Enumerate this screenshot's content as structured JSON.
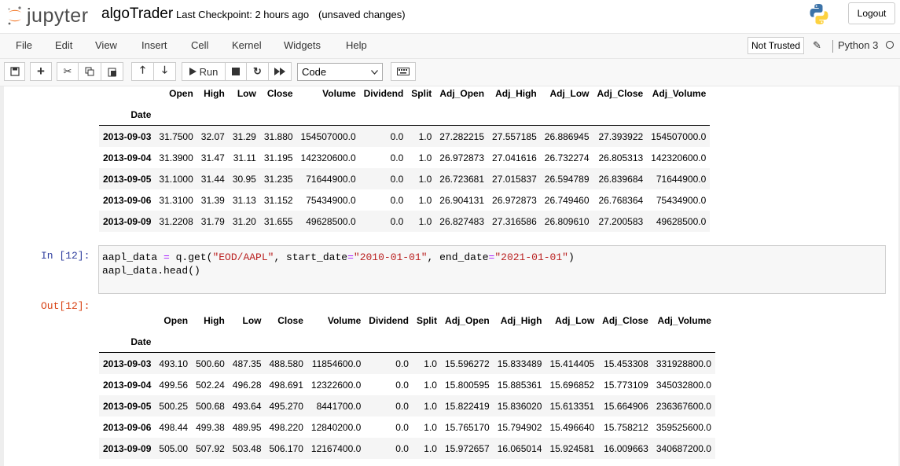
{
  "header": {
    "logo_text": "jupyter",
    "notebook_name": "algoTrader",
    "checkpoint": "Last Checkpoint: 2 hours ago",
    "autosave": "(unsaved changes)",
    "logout_label": "Logout"
  },
  "menu": {
    "items": [
      "File",
      "Edit",
      "View",
      "Insert",
      "Cell",
      "Kernel",
      "Widgets",
      "Help"
    ],
    "trust_label": "Not Trusted",
    "kernel_name": "Python 3"
  },
  "toolbar": {
    "run_label": "Run",
    "cell_type": "Code"
  },
  "table1": {
    "columns": [
      "Open",
      "High",
      "Low",
      "Close",
      "Volume",
      "Dividend",
      "Split",
      "Adj_Open",
      "Adj_High",
      "Adj_Low",
      "Adj_Close",
      "Adj_Volume"
    ],
    "index_name": "Date",
    "rows": [
      [
        "2013-09-03",
        "31.7500",
        "32.07",
        "31.29",
        "31.880",
        "154507000.0",
        "0.0",
        "1.0",
        "27.282215",
        "27.557185",
        "26.886945",
        "27.393922",
        "154507000.0"
      ],
      [
        "2013-09-04",
        "31.3900",
        "31.47",
        "31.11",
        "31.195",
        "142320600.0",
        "0.0",
        "1.0",
        "26.972873",
        "27.041616",
        "26.732274",
        "26.805313",
        "142320600.0"
      ],
      [
        "2013-09-05",
        "31.1000",
        "31.44",
        "30.95",
        "31.235",
        "71644900.0",
        "0.0",
        "1.0",
        "26.723681",
        "27.015837",
        "26.594789",
        "26.839684",
        "71644900.0"
      ],
      [
        "2013-09-06",
        "31.3100",
        "31.39",
        "31.13",
        "31.152",
        "75434900.0",
        "0.0",
        "1.0",
        "26.904131",
        "26.972873",
        "26.749460",
        "26.768364",
        "75434900.0"
      ],
      [
        "2013-09-09",
        "31.2208",
        "31.79",
        "31.20",
        "31.655",
        "49628500.0",
        "0.0",
        "1.0",
        "26.827483",
        "27.316586",
        "26.809610",
        "27.200583",
        "49628500.0"
      ]
    ]
  },
  "cell": {
    "in_prompt": "In [12]:",
    "out_prompt": "Out[12]:",
    "line1_pre": "aapl_data ",
    "line1_eq": "=",
    "line1_mid": " q.get(",
    "line1_str1": "\"EOD/AAPL\"",
    "line1_sep1": ", start_date",
    "line1_eq2": "=",
    "line1_str2": "\"2010-01-01\"",
    "line1_sep2": ", end_date",
    "line1_eq3": "=",
    "line1_str3": "\"2021-01-01\"",
    "line1_end": ")",
    "line2": "aapl_data.head()"
  },
  "table2": {
    "columns": [
      "Open",
      "High",
      "Low",
      "Close",
      "Volume",
      "Dividend",
      "Split",
      "Adj_Open",
      "Adj_High",
      "Adj_Low",
      "Adj_Close",
      "Adj_Volume"
    ],
    "index_name": "Date",
    "rows": [
      [
        "2013-09-03",
        "493.10",
        "500.60",
        "487.35",
        "488.580",
        "11854600.0",
        "0.0",
        "1.0",
        "15.596272",
        "15.833489",
        "15.414405",
        "15.453308",
        "331928800.0"
      ],
      [
        "2013-09-04",
        "499.56",
        "502.24",
        "496.28",
        "498.691",
        "12322600.0",
        "0.0",
        "1.0",
        "15.800595",
        "15.885361",
        "15.696852",
        "15.773109",
        "345032800.0"
      ],
      [
        "2013-09-05",
        "500.25",
        "500.68",
        "493.64",
        "495.270",
        "8441700.0",
        "0.0",
        "1.0",
        "15.822419",
        "15.836020",
        "15.613351",
        "15.664906",
        "236367600.0"
      ],
      [
        "2013-09-06",
        "498.44",
        "499.38",
        "489.95",
        "498.220",
        "12840200.0",
        "0.0",
        "1.0",
        "15.765170",
        "15.794902",
        "15.496640",
        "15.758212",
        "359525600.0"
      ],
      [
        "2013-09-09",
        "505.00",
        "507.92",
        "503.48",
        "506.170",
        "12167400.0",
        "0.0",
        "1.0",
        "15.972657",
        "16.065014",
        "15.924581",
        "16.009663",
        "340687200.0"
      ]
    ]
  }
}
